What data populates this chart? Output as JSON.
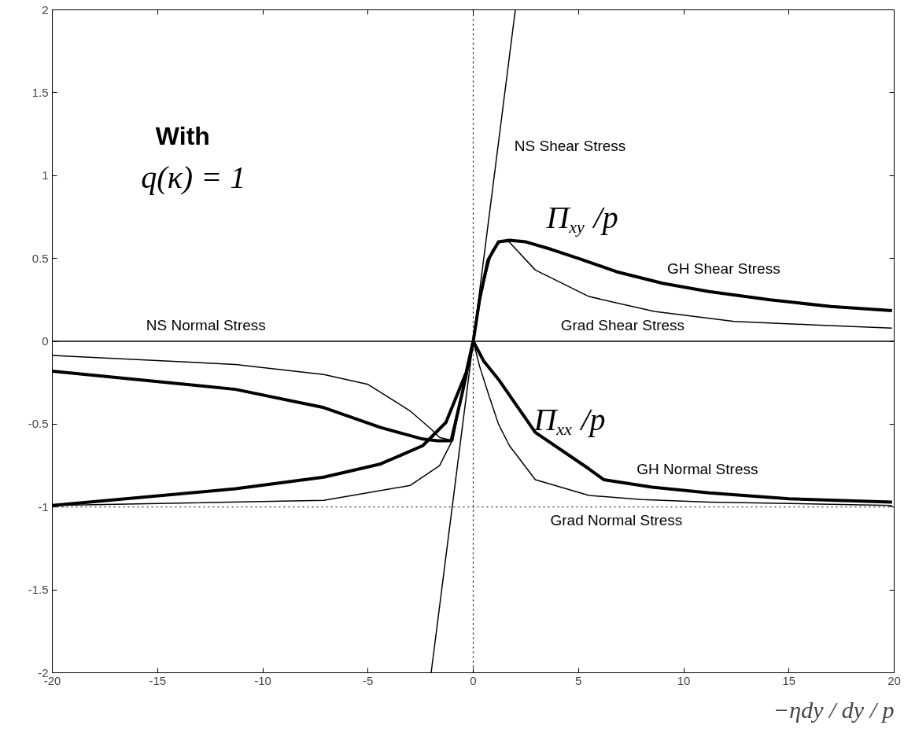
{
  "chart_data": {
    "type": "line",
    "xlabel": "−ηdy / dy / p",
    "xlim": [
      -20,
      20
    ],
    "ylim": [
      -2,
      2
    ],
    "xticks": [
      -20,
      -15,
      -10,
      -5,
      0,
      5,
      10,
      15,
      20
    ],
    "yticks": [
      -2,
      -1.5,
      -1,
      -0.5,
      0,
      0.5,
      1,
      1.5,
      2
    ],
    "grid": false,
    "line_style": "solid",
    "marker": "none",
    "series": [
      {
        "color": "#000000",
        "x": [
          -2,
          2
        ],
        "values": [
          -2,
          2
        ]
      },
      {
        "color": "#000000",
        "x": [
          -20,
          20
        ],
        "values": [
          0,
          0
        ]
      },
      {
        "color": "#000000",
        "x": [
          -20,
          -11.3,
          -7.1,
          -4.4,
          -2.4,
          -1.7,
          -1.05,
          -0.5,
          0,
          0.3,
          0.7,
          1.2,
          1.72,
          2.5,
          3.7,
          5,
          6.8,
          9,
          11.2,
          14.1,
          17,
          19.9
        ],
        "values": [
          -0.18,
          -0.29,
          -0.4,
          -0.52,
          -0.59,
          -0.6,
          -0.6,
          -0.3,
          0,
          0.25,
          0.49,
          0.6,
          0.61,
          0.6,
          0.555,
          0.5,
          0.42,
          0.35,
          0.3,
          0.25,
          0.21,
          0.185
        ]
      },
      {
        "color": "#000000",
        "x": [
          -20,
          -11.3,
          -7.1,
          -5,
          -3,
          -2,
          -1.6,
          -0.97,
          -0.5,
          0,
          0.4,
          0.9,
          1.3,
          1.7,
          2.95,
          5.5,
          8.6,
          12.4,
          16,
          19.9
        ],
        "values": [
          -0.085,
          -0.14,
          -0.2,
          -0.26,
          -0.42,
          -0.53,
          -0.58,
          -0.6,
          -0.3,
          0,
          0.3,
          0.55,
          0.6,
          0.6,
          0.43,
          0.27,
          0.18,
          0.12,
          0.1,
          0.08
        ]
      },
      {
        "color": "#000000",
        "x": [
          -20,
          -11.3,
          -7.1,
          -4.4,
          -2.4,
          -1.3,
          -0.34,
          0,
          0.5,
          1.2,
          2.95,
          5.5,
          6.2,
          8.5,
          11.2,
          15,
          19.9
        ],
        "values": [
          -0.99,
          -0.89,
          -0.82,
          -0.74,
          -0.63,
          -0.49,
          -0.19,
          0,
          -0.12,
          -0.23,
          -0.55,
          -0.77,
          -0.835,
          -0.88,
          -0.915,
          -0.95,
          -0.97
        ]
      },
      {
        "color": "#000000",
        "x": [
          -20,
          -7.1,
          -3,
          -1.6,
          -1,
          -0.5,
          0,
          0.3,
          0.7,
          1.2,
          1.72,
          2.95,
          5.5,
          8,
          11.2,
          19.9
        ],
        "values": [
          -0.99,
          -0.96,
          -0.87,
          -0.75,
          -0.6,
          -0.3,
          0,
          -0.15,
          -0.31,
          -0.5,
          -0.63,
          -0.835,
          -0.93,
          -0.955,
          -0.97,
          -0.99
        ]
      }
    ],
    "ref_lines": [
      {
        "axis": "x",
        "value": 0,
        "line_style": "dotted",
        "color": "#000000"
      },
      {
        "axis": "y",
        "value": -1,
        "line_style": "dotted",
        "color": "#000000"
      }
    ],
    "annotations": [
      "NS Shear Stress",
      "GH Shear Stress",
      "Grad Shear Stress",
      "NS Normal Stress",
      "GH Normal Stress",
      "Grad Normal Stress",
      "Π$_{xy}$/p",
      "Π$_{xx}$/p",
      "With",
      "q(κ) = 1"
    ]
  }
}
